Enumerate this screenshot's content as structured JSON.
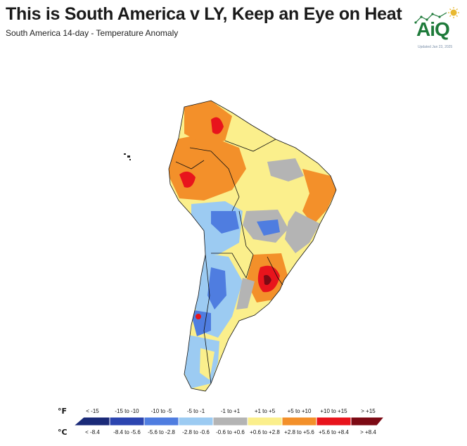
{
  "header": {
    "title": "This is South America v LY, Keep an Eye on Heat",
    "subtitle": "South America 14-day - Temperature Anomaly"
  },
  "logo": {
    "text": "AiQ",
    "updated": "Updated Jan 23, 2025",
    "brand_color": "#1e7a3a",
    "sun_color": "#e8b830"
  },
  "legend": {
    "unit_f": "°F",
    "unit_c": "°C",
    "bins": [
      {
        "f": "< -15",
        "c": "< -8.4",
        "color": "#1a2a78"
      },
      {
        "f": "-15 to -10",
        "c": "-8.4 to -5.6",
        "color": "#2c45b0"
      },
      {
        "f": "-10 to -5",
        "c": "-5.6 to -2.8",
        "color": "#4f7de0"
      },
      {
        "f": "-5 to -1",
        "c": "-2.8 to -0.6",
        "color": "#9ccbf2"
      },
      {
        "f": "-1 to +1",
        "c": "-0.6 to +0.6",
        "color": "#b4b4b4"
      },
      {
        "f": "+1 to +5",
        "c": "+0.6 to +2.8",
        "color": "#fbef8c"
      },
      {
        "f": "+5 to +10",
        "c": "+2.8 to +5.6",
        "color": "#f3902a"
      },
      {
        "f": "+10 to +15",
        "c": "+5.6 to +8.4",
        "color": "#e8141c"
      },
      {
        "f": "> +15",
        "c": "> +8.4",
        "color": "#7c0a14"
      }
    ]
  }
}
